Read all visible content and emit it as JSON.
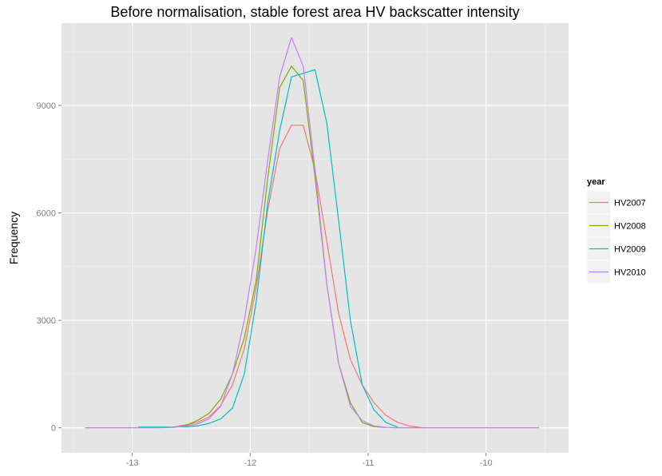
{
  "chart_data": {
    "type": "line",
    "title": "Before normalisation, stable forest area HV backscatter intensity",
    "xlabel": "",
    "ylabel": "Frequency",
    "xlim": [
      -13.6,
      -9.3
    ],
    "ylim": [
      -700,
      11300
    ],
    "x_ticks": [
      -13,
      -12,
      -11,
      -10
    ],
    "x_tick_labels": [
      "-13",
      "-12",
      "-11",
      "-10"
    ],
    "y_ticks": [
      0,
      3000,
      6000,
      9000
    ],
    "y_tick_labels": [
      "0",
      "3000",
      "6000",
      "9000"
    ],
    "grid": true,
    "legend": {
      "title": "year",
      "position": "right"
    },
    "series": [
      {
        "name": "HV2007",
        "color": "#F8766D",
        "x": [
          -12.65,
          -12.55,
          -12.45,
          -12.35,
          -12.25,
          -12.15,
          -12.05,
          -11.95,
          -11.85,
          -11.75,
          -11.65,
          -11.55,
          -11.45,
          -11.35,
          -11.25,
          -11.15,
          -11.05,
          -10.95,
          -10.85,
          -10.75,
          -10.65,
          -10.55
        ],
        "values": [
          20,
          80,
          150,
          300,
          620,
          1200,
          2200,
          3900,
          6100,
          7800,
          8450,
          8450,
          7200,
          5200,
          3200,
          1900,
          1200,
          700,
          350,
          150,
          50,
          10
        ]
      },
      {
        "name": "HV2008",
        "color": "#7CAE00",
        "x": [
          -12.65,
          -12.55,
          -12.45,
          -12.35,
          -12.25,
          -12.15,
          -12.05,
          -11.95,
          -11.85,
          -11.75,
          -11.65,
          -11.55,
          -11.45,
          -11.35,
          -11.25,
          -11.15,
          -11.05,
          -10.95,
          -10.85
        ],
        "values": [
          10,
          60,
          200,
          400,
          800,
          1500,
          2500,
          4100,
          7000,
          9500,
          10100,
          9700,
          7000,
          4000,
          1800,
          700,
          150,
          30,
          5
        ]
      },
      {
        "name": "HV2009",
        "color": "#00BFC4",
        "x": [
          -12.95,
          -12.85,
          -12.75,
          -12.65,
          -12.55,
          -12.45,
          -12.35,
          -12.25,
          -12.15,
          -12.05,
          -11.95,
          -11.85,
          -11.75,
          -11.65,
          -11.55,
          -11.45,
          -11.35,
          -11.25,
          -11.15,
          -11.05,
          -10.95,
          -10.85,
          -10.75
        ],
        "values": [
          20,
          20,
          20,
          20,
          30,
          50,
          120,
          250,
          550,
          1500,
          3500,
          6300,
          8300,
          9800,
          9900,
          10000,
          8500,
          5800,
          3000,
          1200,
          500,
          150,
          20
        ]
      },
      {
        "name": "HV2010",
        "color": "#C77CFF",
        "x": [
          -13.4,
          -13.1,
          -12.8,
          -12.65,
          -12.55,
          -12.45,
          -12.35,
          -12.25,
          -12.15,
          -12.05,
          -11.95,
          -11.85,
          -11.75,
          -11.65,
          -11.55,
          -11.45,
          -11.35,
          -11.25,
          -11.15,
          -11.05,
          -10.95,
          -10.85,
          -10.75,
          -10.5,
          -10.2,
          -9.9,
          -9.55
        ],
        "values": [
          0,
          0,
          0,
          10,
          50,
          100,
          250,
          600,
          1500,
          3000,
          5000,
          7500,
          9800,
          10900,
          10100,
          7200,
          4000,
          1800,
          600,
          200,
          50,
          10,
          0,
          0,
          0,
          0,
          0
        ]
      }
    ]
  }
}
